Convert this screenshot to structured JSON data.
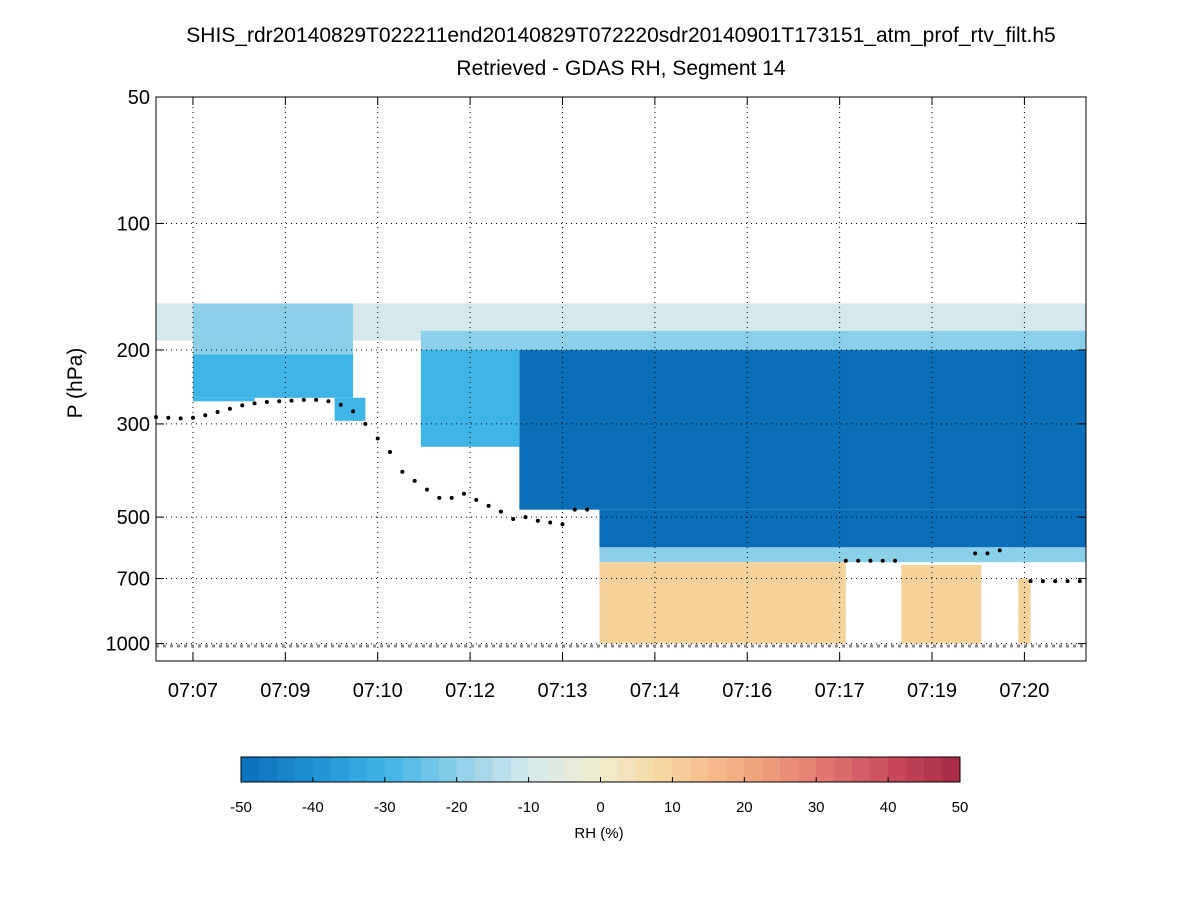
{
  "chart_data": {
    "type": "heatmap",
    "title": "SHIS_rdr20140829T022211end20140829T072220sdr20140901T173151_atm_prof_rtv_filt.h5",
    "subtitle": "Retrieved - GDAS RH, Segment 14",
    "ylabel": "P (hPa)",
    "yscale": "log",
    "y_reversed": true,
    "ylim": [
      50,
      1100
    ],
    "y_ticks": [
      50,
      100,
      200,
      300,
      500,
      700,
      1000
    ],
    "x_ticks": [
      "07:07",
      "07:09",
      "07:10",
      "07:12",
      "07:13",
      "07:14",
      "07:16",
      "07:17",
      "07:19",
      "07:20"
    ],
    "x_tick_minutes": [
      7.0,
      8.5,
      10.0,
      11.5,
      13.0,
      14.5,
      16.0,
      17.5,
      19.0,
      20.5
    ],
    "xlim_minutes": [
      6.4,
      21.5
    ],
    "grid": true,
    "colorbar": {
      "label": "RH (%)",
      "range": [
        -50,
        50
      ],
      "ticks": [
        -50,
        -40,
        -30,
        -20,
        -10,
        0,
        10,
        20,
        30,
        40,
        50
      ],
      "colors": [
        "#0a6fb8",
        "#1e90d4",
        "#3fb4e6",
        "#8ccfe8",
        "#d4e8ee",
        "#f2eccc",
        "#f6d29b",
        "#f2a980",
        "#e57d72",
        "#cc4c5e",
        "#a52a44"
      ]
    },
    "field_regions": [
      {
        "t": [
          6.4,
          7.0
        ],
        "p": [
          155,
          190
        ],
        "rh": -12
      },
      {
        "t": [
          7.0,
          9.6
        ],
        "p": [
          155,
          205
        ],
        "rh": -22
      },
      {
        "t": [
          7.0,
          9.6
        ],
        "p": [
          205,
          260
        ],
        "rh": -33
      },
      {
        "t": [
          7.0,
          8.0
        ],
        "p": [
          260,
          265
        ],
        "rh": -30
      },
      {
        "t": [
          9.6,
          10.1
        ],
        "p": [
          155,
          190
        ],
        "rh": -15
      },
      {
        "t": [
          10.1,
          10.7
        ],
        "p": [
          155,
          190
        ],
        "rh": -14
      },
      {
        "t": [
          9.3,
          9.8
        ],
        "p": [
          260,
          295
        ],
        "rh": -28
      },
      {
        "t": [
          10.7,
          21.5
        ],
        "p": [
          155,
          180
        ],
        "rh": -8
      },
      {
        "t": [
          10.7,
          21.5
        ],
        "p": [
          180,
          200
        ],
        "rh": -25
      },
      {
        "t": [
          10.7,
          12.3
        ],
        "p": [
          200,
          340
        ],
        "rh": -35
      },
      {
        "t": [
          12.3,
          21.5
        ],
        "p": [
          200,
          480
        ],
        "rh": -50
      },
      {
        "t": [
          13.6,
          21.5
        ],
        "p": [
          480,
          590
        ],
        "rh": -48
      },
      {
        "t": [
          13.6,
          21.5
        ],
        "p": [
          590,
          640
        ],
        "rh": -20
      },
      {
        "t": [
          13.6,
          17.6
        ],
        "p": [
          640,
          1000
        ],
        "rh": 6
      },
      {
        "t": [
          18.5,
          19.8
        ],
        "p": [
          650,
          1000
        ],
        "rh": 12
      },
      {
        "t": [
          20.4,
          20.6
        ],
        "p": [
          700,
          1000
        ],
        "rh": 10
      }
    ],
    "surface_pressure_dots": {
      "minutes": [
        6.4,
        6.6,
        6.8,
        7.0,
        7.2,
        7.4,
        7.6,
        7.8,
        8.0,
        8.2,
        8.4,
        8.6,
        8.8,
        9.0,
        9.2,
        9.4,
        9.6,
        9.8,
        10.0,
        10.2,
        10.4,
        10.6,
        10.8,
        11.0,
        11.2,
        11.4,
        11.6,
        11.8,
        12.0,
        12.2,
        12.4,
        12.6,
        12.8,
        13.0,
        13.2,
        13.4,
        17.6,
        17.8,
        18.0,
        18.2,
        18.4,
        19.7,
        19.9,
        20.1,
        20.6,
        20.8,
        21.0,
        21.2,
        21.4
      ],
      "pressure_hPa": [
        289,
        290,
        291,
        290,
        286,
        281,
        276,
        271,
        268,
        266,
        265,
        264,
        263,
        263,
        265,
        270,
        280,
        300,
        325,
        350,
        390,
        410,
        430,
        450,
        450,
        440,
        455,
        470,
        485,
        505,
        500,
        510,
        515,
        520,
        480,
        480,
        635,
        635,
        635,
        635,
        635,
        610,
        610,
        600,
        710,
        710,
        710,
        710,
        710
      ]
    },
    "ground_line_hPa": 1013
  }
}
